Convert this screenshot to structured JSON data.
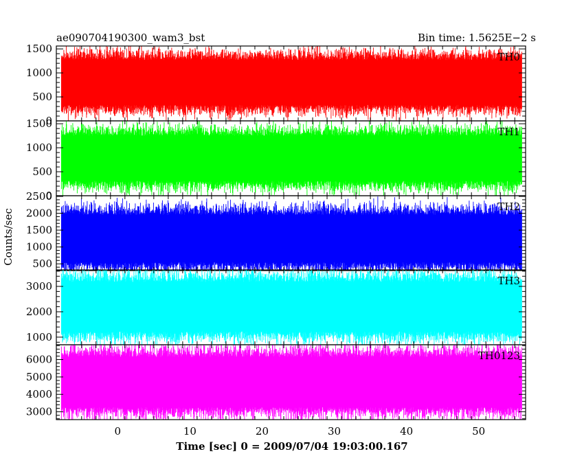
{
  "chart_data": {
    "type": "line",
    "title": "ae090704190300_wam3_bst",
    "bin_time_label": "Bin time: 1.5625E−2 s",
    "xlabel": "Time [sec] 0 = 2009/07/04 19:03:00.167",
    "ylabel": "Counts/sec",
    "xlim": [
      -8.5,
      56.5
    ],
    "x_data_range": [
      -7.8,
      56.0
    ],
    "x_ticks": [
      0,
      10,
      20,
      30,
      40,
      50
    ],
    "x_tick_labels": [
      "0",
      "10",
      "20",
      "30",
      "40",
      "50"
    ],
    "grid": false,
    "panels": [
      {
        "name": "TH0",
        "color": "#ff0000",
        "ylim": [
          0,
          1560
        ],
        "y_ticks": [
          0,
          500,
          1000,
          1500
        ],
        "y_tick_labels": [
          "0",
          "500",
          "1000",
          "1500"
        ],
        "mean": 800,
        "typical_range": [
          150,
          1450
        ]
      },
      {
        "name": "TH1",
        "color": "#00ff00",
        "ylim": [
          0,
          1560
        ],
        "y_ticks": [
          0,
          500,
          1000,
          1500
        ],
        "y_tick_labels": [
          "0",
          "500",
          "1000",
          "1500"
        ],
        "mean": 780,
        "typical_range": [
          150,
          1450
        ]
      },
      {
        "name": "TH2",
        "color": "#0000ff",
        "ylim": [
          300,
          2520
        ],
        "y_ticks": [
          500,
          1000,
          1500,
          2000,
          2500
        ],
        "y_tick_labels": [
          "500",
          "1000",
          "1500",
          "2000",
          "2500"
        ],
        "mean": 1250,
        "typical_range": [
          450,
          2400
        ]
      },
      {
        "name": "TH3",
        "color": "#00ffff",
        "ylim": [
          700,
          3650
        ],
        "y_ticks": [
          1000,
          2000,
          3000
        ],
        "y_tick_labels": [
          "1000",
          "2000",
          "3000"
        ],
        "mean": 2200,
        "typical_range": [
          800,
          3500
        ]
      },
      {
        "name": "TH0123",
        "color": "#ff00ff",
        "ylim": [
          2550,
          6850
        ],
        "y_ticks": [
          3000,
          4000,
          5000,
          6000
        ],
        "y_tick_labels": [
          "3000",
          "4000",
          "5000",
          "6000"
        ],
        "mean": 4700,
        "typical_range": [
          2700,
          6700
        ]
      }
    ]
  }
}
